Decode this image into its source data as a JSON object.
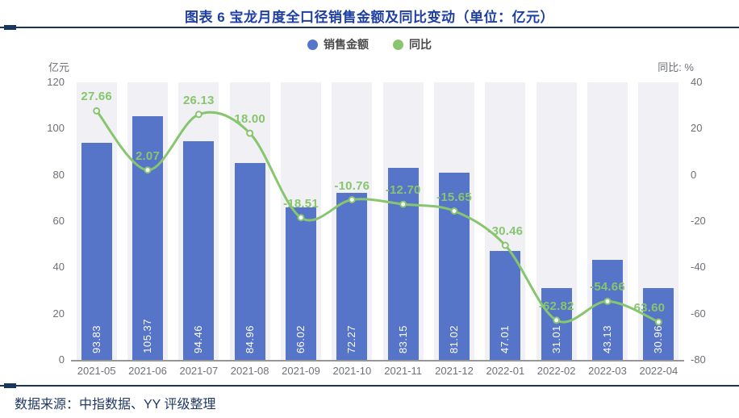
{
  "title": "图表 6 宝龙月度全口径销售金额及同比变动（单位：亿元）",
  "source_note": "数据来源：中指数据、YY 评级整理",
  "legend": {
    "position": "top-center",
    "items": [
      {
        "label": "销售金额",
        "color": "#5674C8",
        "marker": "circle"
      },
      {
        "label": "同比",
        "color": "#87C66E",
        "marker": "circle"
      }
    ]
  },
  "left_axis": {
    "name": "亿元",
    "min": 0,
    "max": 120,
    "ticks": [
      0,
      20,
      40,
      60,
      80,
      100,
      120
    ]
  },
  "right_axis": {
    "name": "同比: %",
    "min": -80,
    "max": 40,
    "ticks": [
      -80,
      -60,
      -40,
      -20,
      0,
      20,
      40
    ]
  },
  "colors": {
    "title": "#1F3FA3",
    "divider": "#16365C",
    "source": "#1F3864",
    "bar": "#5674C8",
    "line": "#87C66E",
    "column_band": "#F1F1F5",
    "axis_text": "#6E7079",
    "bar_value_text": "#FFFFFF"
  },
  "chart_data": {
    "type": "bar",
    "title": "图表 6 宝龙月度全口径销售金额及同比变动（单位：亿元）",
    "categories": [
      "2021-05",
      "2021-06",
      "2021-07",
      "2021-08",
      "2021-09",
      "2021-10",
      "2021-11",
      "2021-12",
      "2022-01",
      "2022-02",
      "2022-03",
      "2022-04"
    ],
    "series": [
      {
        "name": "销售金额",
        "type": "bar",
        "y_axis": "left",
        "unit": "亿元",
        "color": "#5674C8",
        "values": [
          93.83,
          105.37,
          94.46,
          84.96,
          66.02,
          72.27,
          83.15,
          81.02,
          47.01,
          31.01,
          43.13,
          30.96
        ],
        "value_labels": "inside-bottom-rotated"
      },
      {
        "name": "同比",
        "type": "line",
        "y_axis": "right",
        "unit": "%",
        "color": "#87C66E",
        "smooth": true,
        "marker": "hollow-circle",
        "values": [
          27.66,
          2.07,
          26.13,
          18.0,
          -18.51,
          -10.76,
          -12.7,
          -15.65,
          -30.46,
          -62.82,
          -54.66,
          -63.6
        ],
        "value_labels": "top"
      }
    ],
    "left_ylim": [
      0,
      120
    ],
    "right_ylim": [
      -80,
      40
    ],
    "grid": false,
    "column_background": true,
    "legend_position": "top"
  }
}
